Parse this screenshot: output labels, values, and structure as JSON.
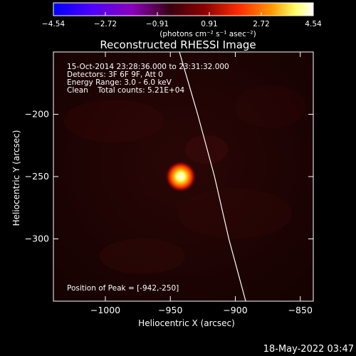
{
  "chart_data": {
    "type": "heatmap",
    "title": "Reconstructed RHESSI Image",
    "xlabel": "Heliocentric X (arcsec)",
    "ylabel": "Heliocentric Y (arcsec)",
    "xlim": [
      -1040,
      -840
    ],
    "ylim": [
      -350,
      -150
    ],
    "xticks": [
      -1000,
      -950,
      -900,
      -850
    ],
    "yticks": [
      -200,
      -250,
      -300
    ],
    "colorbar": {
      "min": -4.54,
      "max": 4.54,
      "ticks": [
        "-4.54",
        "-2.72",
        "-0.91",
        "0.91",
        "2.72",
        "4.54"
      ],
      "unit_label": "(photons cm⁻² s⁻¹ asec⁻²)",
      "colors": [
        "#0000ff",
        "#4b00ff",
        "#8a00c0",
        "#3a0010",
        "#8b0000",
        "#ff3000",
        "#ff9900",
        "#ffff66",
        "#ffffff"
      ]
    },
    "info_lines": [
      "15-Oct-2014 23:28:36.000 to 23:31:32.000",
      "Detectors: 3F 6F 9F, Att 0",
      "Energy Range: 3.0 - 6.0 keV",
      "Clean    Total counts: 5.21E+04"
    ],
    "peak_label": "Position of Peak = [-942,-250]",
    "peak": {
      "x": -942,
      "y": -250
    },
    "limb": [
      {
        "x": -943,
        "y": -150
      },
      {
        "x": -929,
        "y": -200
      },
      {
        "x": -916,
        "y": -250
      },
      {
        "x": -905,
        "y": -300
      },
      {
        "x": -892,
        "y": -350
      }
    ]
  },
  "timestamp": "18-May-2022 03:47"
}
